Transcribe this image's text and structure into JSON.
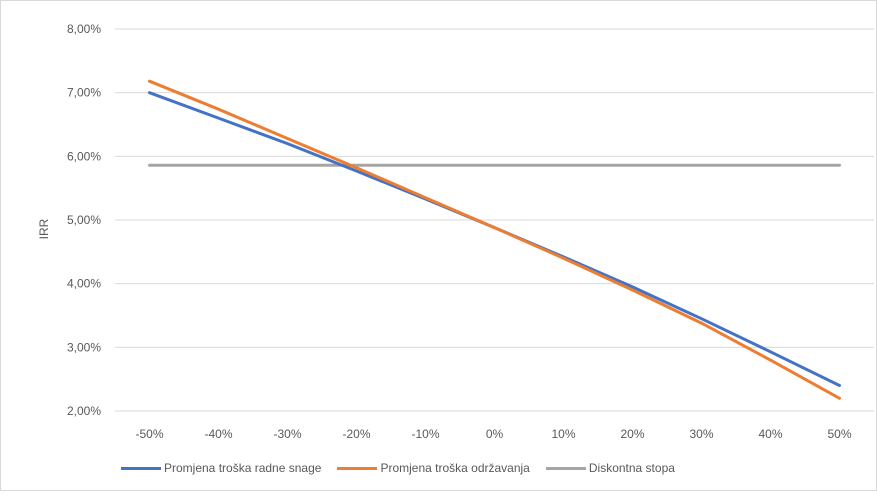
{
  "chart_data": {
    "type": "line",
    "title": "",
    "xlabel": "",
    "ylabel": "IRR",
    "x": [
      "-50%",
      "-40%",
      "-30%",
      "-20%",
      "-10%",
      "0%",
      "10%",
      "20%",
      "30%",
      "40%",
      "50%"
    ],
    "ylim": [
      2,
      8
    ],
    "yticks": [
      "2,00%",
      "3,00%",
      "4,00%",
      "5,00%",
      "6,00%",
      "7,00%",
      "8,00%"
    ],
    "grid": true,
    "legend_position": "bottom",
    "series": [
      {
        "name": "Promjena troška radne snage",
        "color": "#4472c4",
        "values": [
          7.0,
          6.6,
          6.2,
          5.77,
          5.33,
          4.88,
          4.42,
          3.95,
          3.45,
          2.93,
          2.4
        ]
      },
      {
        "name": "Promjena troška održavanja",
        "color": "#ed7d31",
        "values": [
          7.18,
          6.74,
          6.28,
          5.82,
          5.35,
          4.88,
          4.4,
          3.9,
          3.38,
          2.8,
          2.2
        ]
      },
      {
        "name": "Diskontna stopa",
        "color": "#a5a5a5",
        "values": [
          5.86,
          5.86,
          5.86,
          5.86,
          5.86,
          5.86,
          5.86,
          5.86,
          5.86,
          5.86,
          5.86
        ]
      }
    ]
  }
}
